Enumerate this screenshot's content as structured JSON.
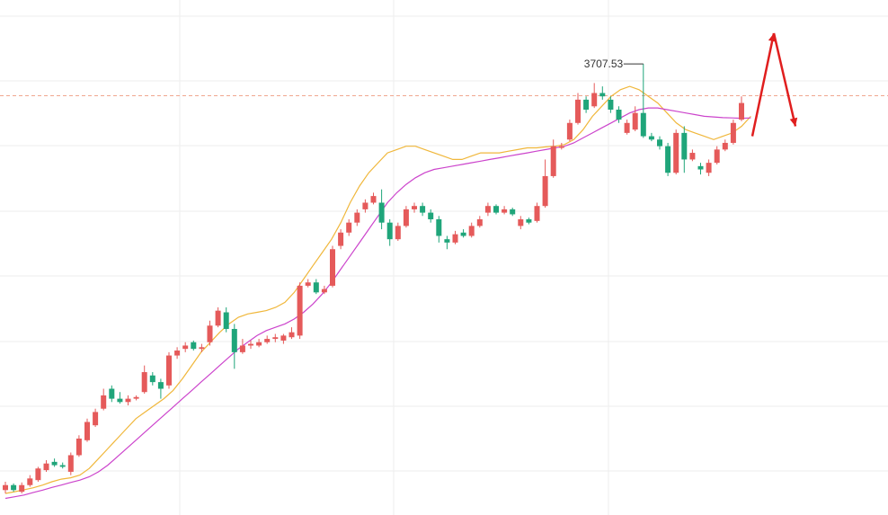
{
  "chart_data": {
    "type": "candlestick",
    "title": "",
    "xlabel": "",
    "ylabel": "",
    "ylim": [
      2350,
      3900
    ],
    "grid": true,
    "current_price_line": 3612,
    "peak_annotation": {
      "value": 3707.53,
      "label": "3707.53"
    },
    "ma_lines": [
      {
        "values": [
          2415,
          2420,
          2426,
          2432,
          2440,
          2450,
          2458,
          2462,
          2470,
          2490,
          2520,
          2550,
          2580,
          2610,
          2640,
          2660,
          2680,
          2700,
          2725,
          2760,
          2800,
          2840,
          2870,
          2900,
          2925,
          2945,
          2955,
          2960,
          2965,
          2975,
          2990,
          3020,
          3060,
          3100,
          3140,
          3180,
          3230,
          3290,
          3340,
          3380,
          3410,
          3440,
          3450,
          3460,
          3460,
          3450,
          3440,
          3430,
          3420,
          3420,
          3430,
          3440,
          3440,
          3440,
          3445,
          3450,
          3455,
          3455,
          3458,
          3460,
          3465,
          3480,
          3510,
          3550,
          3580,
          3610,
          3630,
          3640,
          3630,
          3610,
          3590,
          3560,
          3530,
          3510,
          3500,
          3490,
          3480,
          3490,
          3500,
          3520,
          3550
        ]
      },
      {
        "values": [
          2400,
          2405,
          2410,
          2418,
          2425,
          2433,
          2440,
          2448,
          2455,
          2465,
          2480,
          2500,
          2525,
          2550,
          2575,
          2600,
          2625,
          2650,
          2675,
          2700,
          2725,
          2750,
          2775,
          2800,
          2825,
          2850,
          2870,
          2890,
          2905,
          2915,
          2925,
          2940,
          2960,
          2985,
          3015,
          3050,
          3090,
          3130,
          3170,
          3210,
          3250,
          3290,
          3320,
          3345,
          3365,
          3380,
          3390,
          3395,
          3400,
          3405,
          3410,
          3415,
          3420,
          3425,
          3430,
          3435,
          3440,
          3445,
          3450,
          3455,
          3460,
          3470,
          3485,
          3500,
          3515,
          3530,
          3545,
          3560,
          3570,
          3575,
          3575,
          3570,
          3565,
          3560,
          3555,
          3550,
          3548,
          3546,
          3545,
          3544,
          3545
        ]
      }
    ],
    "candles": [
      [
        2425,
        2440,
        2415,
        2450
      ],
      [
        2440,
        2425,
        2420,
        2445
      ],
      [
        2420,
        2440,
        2415,
        2448
      ],
      [
        2440,
        2460,
        2435,
        2470
      ],
      [
        2455,
        2490,
        2450,
        2495
      ],
      [
        2485,
        2505,
        2480,
        2515
      ],
      [
        2510,
        2500,
        2495,
        2520
      ],
      [
        2500,
        2495,
        2490,
        2508
      ],
      [
        2480,
        2530,
        2470,
        2538
      ],
      [
        2530,
        2580,
        2525,
        2590
      ],
      [
        2575,
        2630,
        2570,
        2640
      ],
      [
        2620,
        2660,
        2615,
        2670
      ],
      [
        2670,
        2710,
        2665,
        2730
      ],
      [
        2730,
        2700,
        2690,
        2740
      ],
      [
        2700,
        2690,
        2685,
        2720
      ],
      [
        2690,
        2700,
        2680,
        2710
      ],
      [
        2700,
        2705,
        2695,
        2710
      ],
      [
        2720,
        2780,
        2715,
        2800
      ],
      [
        2770,
        2750,
        2740,
        2780
      ],
      [
        2750,
        2730,
        2700,
        2760
      ],
      [
        2740,
        2830,
        2730,
        2840
      ],
      [
        2830,
        2845,
        2820,
        2855
      ],
      [
        2850,
        2860,
        2840,
        2870
      ],
      [
        2870,
        2850,
        2845,
        2875
      ],
      [
        2850,
        2855,
        2840,
        2865
      ],
      [
        2870,
        2920,
        2860,
        2935
      ],
      [
        2920,
        2965,
        2915,
        2975
      ],
      [
        2960,
        2910,
        2900,
        2975
      ],
      [
        2910,
        2840,
        2790,
        2925
      ],
      [
        2840,
        2860,
        2835,
        2880
      ],
      [
        2860,
        2865,
        2850,
        2875
      ],
      [
        2860,
        2870,
        2855,
        2880
      ],
      [
        2870,
        2880,
        2865,
        2890
      ],
      [
        2880,
        2885,
        2870,
        2895
      ],
      [
        2875,
        2890,
        2865,
        2895
      ],
      [
        2885,
        2900,
        2880,
        2915
      ],
      [
        2890,
        3040,
        2880,
        3050
      ],
      [
        3040,
        3050,
        3035,
        3060
      ],
      [
        3050,
        3020,
        3015,
        3060
      ],
      [
        3020,
        3030,
        3015,
        3040
      ],
      [
        3040,
        3150,
        3035,
        3160
      ],
      [
        3160,
        3200,
        3150,
        3210
      ],
      [
        3200,
        3230,
        3190,
        3240
      ],
      [
        3230,
        3260,
        3220,
        3270
      ],
      [
        3270,
        3290,
        3260,
        3300
      ],
      [
        3290,
        3310,
        3285,
        3320
      ],
      [
        3290,
        3230,
        3210,
        3330
      ],
      [
        3230,
        3180,
        3160,
        3240
      ],
      [
        3180,
        3220,
        3175,
        3230
      ],
      [
        3220,
        3270,
        3215,
        3280
      ],
      [
        3270,
        3280,
        3260,
        3290
      ],
      [
        3280,
        3260,
        3250,
        3290
      ],
      [
        3260,
        3240,
        3230,
        3270
      ],
      [
        3240,
        3190,
        3170,
        3250
      ],
      [
        3180,
        3170,
        3150,
        3190
      ],
      [
        3170,
        3195,
        3165,
        3205
      ],
      [
        3200,
        3190,
        3185,
        3210
      ],
      [
        3190,
        3220,
        3185,
        3230
      ],
      [
        3220,
        3240,
        3215,
        3250
      ],
      [
        3260,
        3280,
        3250,
        3290
      ],
      [
        3280,
        3260,
        3255,
        3285
      ],
      [
        3260,
        3270,
        3255,
        3280
      ],
      [
        3270,
        3255,
        3250,
        3275
      ],
      [
        3220,
        3240,
        3210,
        3250
      ],
      [
        3240,
        3230,
        3225,
        3245
      ],
      [
        3235,
        3280,
        3230,
        3290
      ],
      [
        3280,
        3370,
        3275,
        3420
      ],
      [
        3370,
        3460,
        3365,
        3480
      ],
      [
        3455,
        3460,
        3450,
        3470
      ],
      [
        3480,
        3530,
        3475,
        3540
      ],
      [
        3530,
        3600,
        3525,
        3620
      ],
      [
        3600,
        3570,
        3560,
        3610
      ],
      [
        3580,
        3620,
        3575,
        3650
      ],
      [
        3620,
        3610,
        3600,
        3640
      ],
      [
        3600,
        3570,
        3560,
        3610
      ],
      [
        3570,
        3540,
        3530,
        3580
      ],
      [
        3500,
        3530,
        3495,
        3540
      ],
      [
        3510,
        3560,
        3505,
        3580
      ],
      [
        3560,
        3490,
        3485,
        3707.53
      ],
      [
        3490,
        3480,
        3475,
        3500
      ],
      [
        3480,
        3460,
        3450,
        3490
      ],
      [
        3460,
        3380,
        3370,
        3470
      ],
      [
        3380,
        3500,
        3375,
        3510
      ],
      [
        3500,
        3420,
        3380,
        3520
      ],
      [
        3420,
        3440,
        3415,
        3450
      ],
      [
        3400,
        3390,
        3375,
        3410
      ],
      [
        3380,
        3410,
        3370,
        3420
      ],
      [
        3410,
        3450,
        3405,
        3460
      ],
      [
        3450,
        3470,
        3445,
        3480
      ],
      [
        3470,
        3530,
        3465,
        3540
      ],
      [
        3540,
        3590,
        3535,
        3610
      ]
    ],
    "forecast": {
      "points": [
        [
          3490,
          3800
        ],
        [
          3800,
          3520
        ]
      ]
    }
  }
}
